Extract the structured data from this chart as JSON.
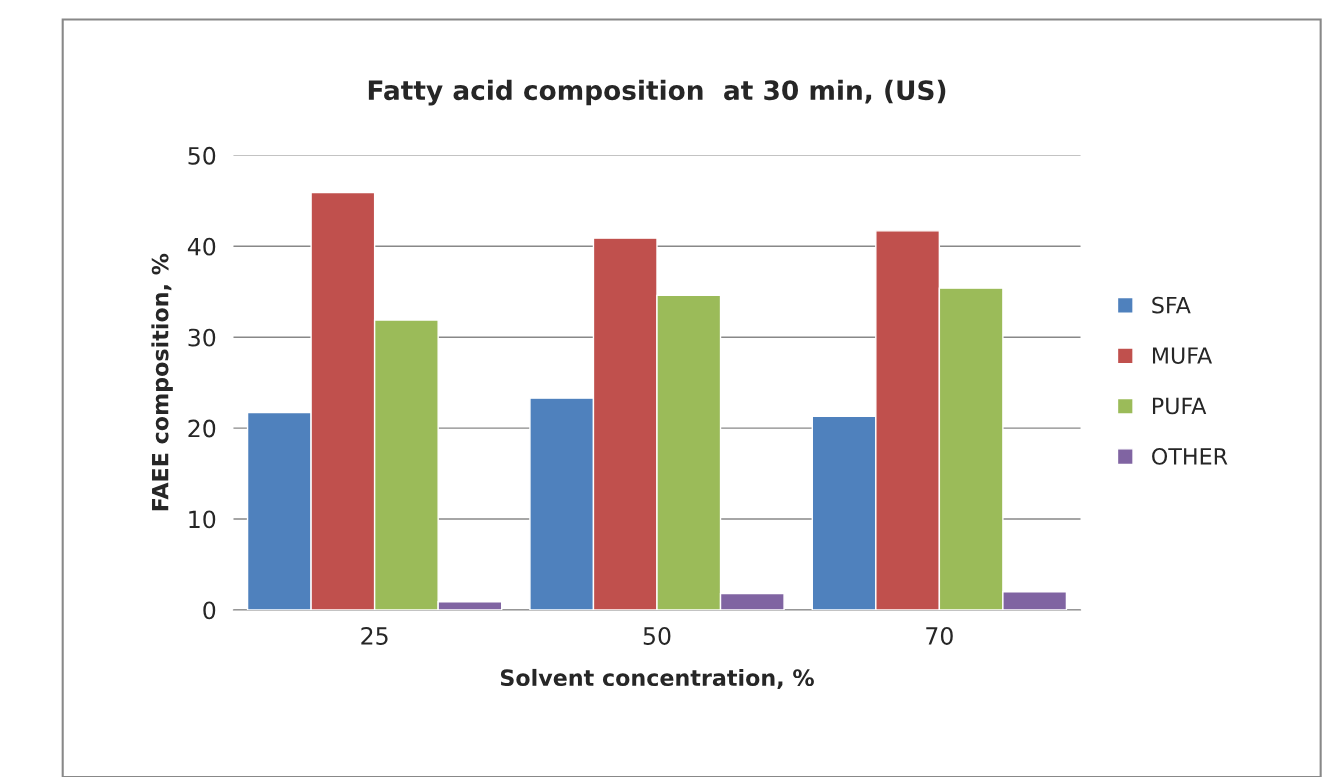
{
  "chart_data": {
    "type": "bar",
    "title": "Fatty acid composition  at 30 min, (US)",
    "xlabel": "Solvent concentration, %",
    "ylabel": "FAEE composition, %",
    "categories": [
      "25",
      "50",
      "70"
    ],
    "series": [
      {
        "name": "SFA",
        "color": "#4f81bd",
        "values": [
          21.7,
          23.3,
          21.3
        ]
      },
      {
        "name": "MUFA",
        "color": "#c0504d",
        "values": [
          45.9,
          40.9,
          41.7
        ]
      },
      {
        "name": "PUFA",
        "color": "#9bbb59",
        "values": [
          31.9,
          34.6,
          35.4
        ]
      },
      {
        "name": "OTHER",
        "color": "#8064a2",
        "values": [
          0.9,
          1.8,
          2.0
        ]
      }
    ],
    "ylim": [
      0,
      50
    ],
    "yticks": [
      0,
      10,
      20,
      30,
      40,
      50
    ],
    "grid": "y",
    "legend": "right"
  }
}
